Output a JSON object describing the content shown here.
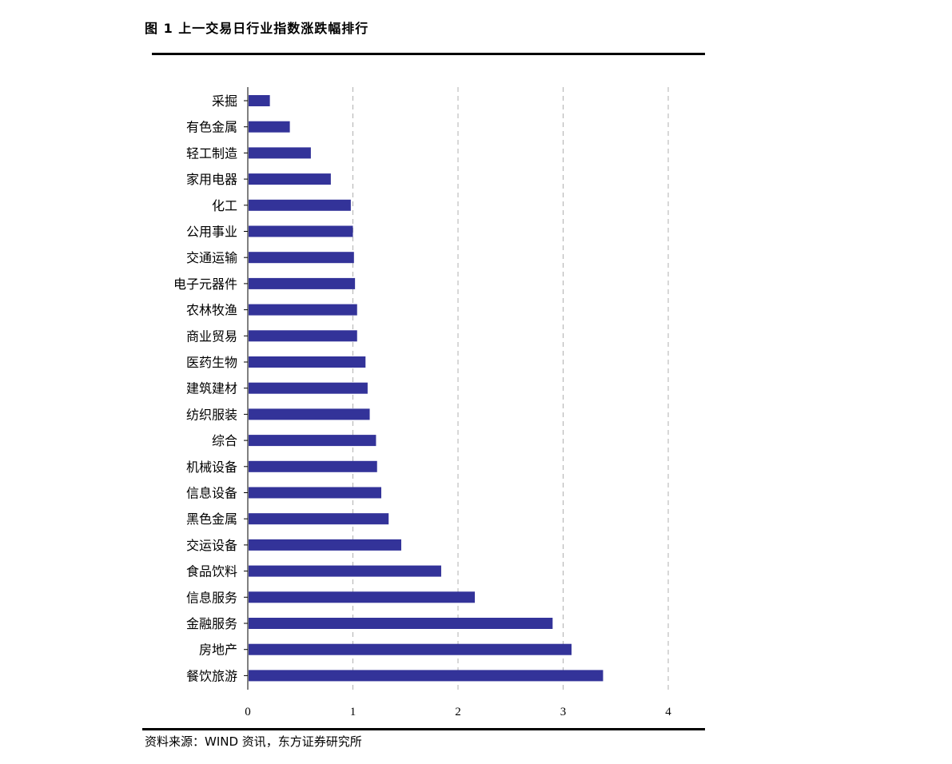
{
  "title": "图 1  上一交易日行业指数涨跌幅排行",
  "source": "资料来源：WIND 资讯，东方证券研究所",
  "colors": {
    "bar": "#333399",
    "grid": "#b0b0b0",
    "axis": "#000000"
  },
  "chart_data": {
    "type": "bar",
    "orientation": "horizontal",
    "title": "",
    "xlabel": "",
    "ylabel": "",
    "xlim": [
      0,
      4
    ],
    "xticks": [
      "0",
      "1",
      "2",
      "3",
      "4"
    ],
    "grid": "vertical-dashed",
    "categories": [
      "采掘",
      "有色金属",
      "轻工制造",
      "家用电器",
      "化工",
      "公用事业",
      "交通运输",
      "电子元器件",
      "农林牧渔",
      "商业贸易",
      "医药生物",
      "建筑建材",
      "纺织服装",
      "综合",
      "机械设备",
      "信息设备",
      "黑色金属",
      "交运设备",
      "食品饮料",
      "信息服务",
      "金融服务",
      "房地产",
      "餐饮旅游"
    ],
    "values": [
      0.21,
      0.4,
      0.6,
      0.79,
      0.98,
      1.0,
      1.01,
      1.02,
      1.04,
      1.04,
      1.12,
      1.14,
      1.16,
      1.22,
      1.23,
      1.27,
      1.34,
      1.46,
      1.84,
      2.16,
      2.9,
      3.08,
      3.38
    ]
  }
}
